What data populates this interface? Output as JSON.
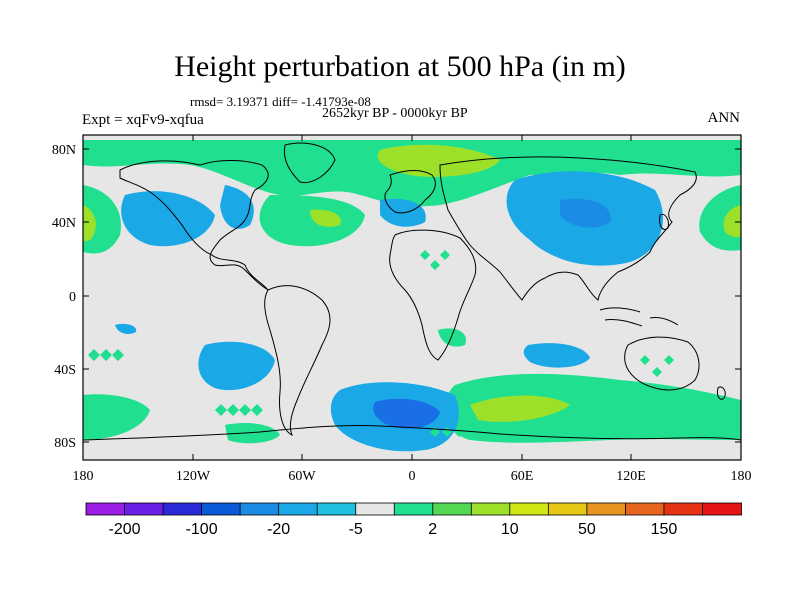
{
  "header": {
    "title": "Height perturbation at 500 hPa (in m)",
    "stats": "rmsd= 3.19371  diff= -1.41793e-08",
    "period": "2652kyr BP - 0000kyr BP",
    "experiment": "Expt = xqFv9-xqfua",
    "season": "ANN"
  },
  "axes": {
    "lat_ticks": [
      "80N",
      "40N",
      "0",
      "40S",
      "80S"
    ],
    "lon_ticks": [
      "180",
      "120W",
      "60W",
      "0",
      "60E",
      "120E",
      "180"
    ]
  },
  "colorbar": {
    "colors": [
      "#9b1ee6",
      "#6a1ee6",
      "#2a2ad8",
      "#0a5ad8",
      "#1a8ce6",
      "#1aa8e6",
      "#20c0e0",
      "#e6e6e6",
      "#20e090",
      "#52d852",
      "#9ce02a",
      "#d2e614",
      "#e6c814",
      "#e6961e",
      "#e6641e",
      "#e63214",
      "#e61414"
    ],
    "labels": [
      "-200",
      "-100",
      "-20",
      "-5",
      "2",
      "10",
      "50",
      "150"
    ]
  },
  "legend_colors": {
    "strong_negative": "#1a6ee6",
    "negative": "#1aa8e6",
    "positive": "#20e090",
    "strong_positive": "#9ce02a",
    "neutral": "#e6e6e6"
  }
}
